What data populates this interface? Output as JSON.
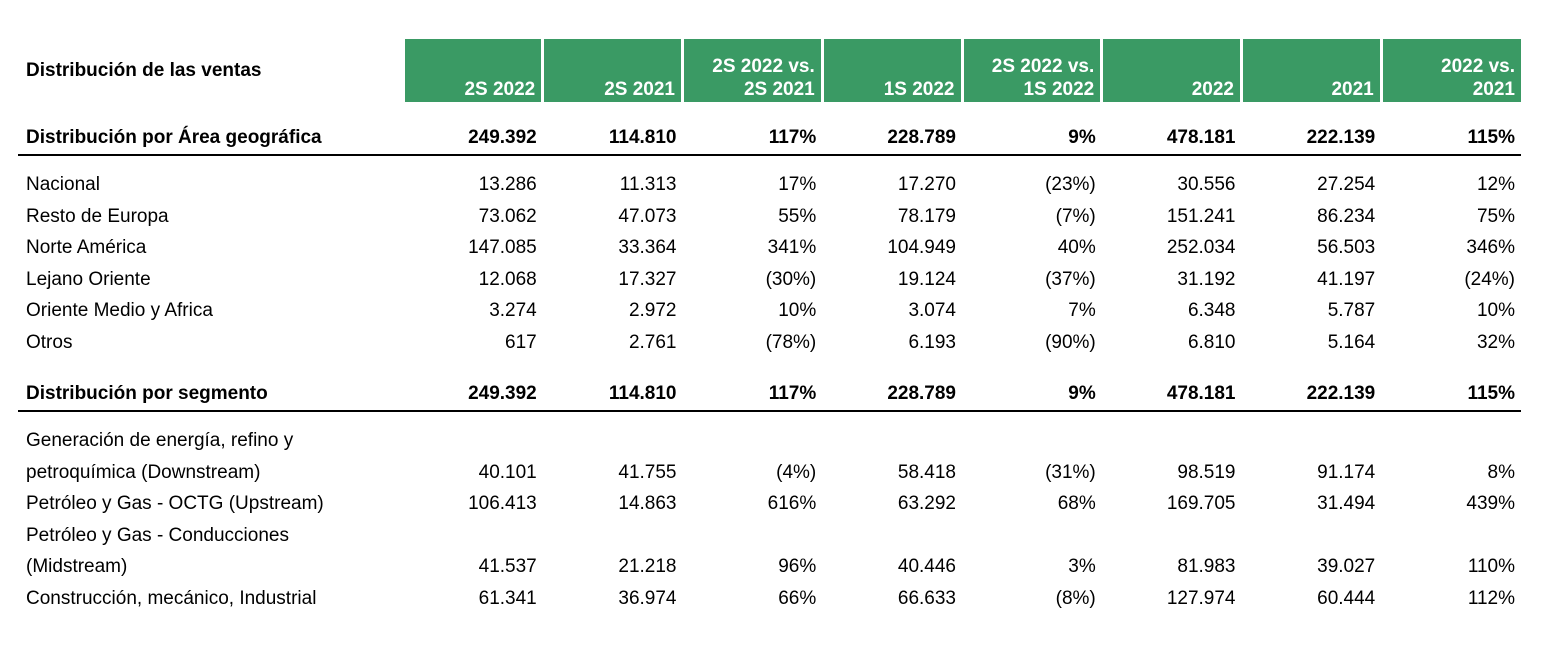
{
  "title": "Distribución de las ventas",
  "columns": [
    "2S 2022",
    "2S 2021",
    "2S 2022 vs. 2S 2021",
    "1S 2022",
    "2S 2022 vs. 1S 2022",
    "2022",
    "2021",
    "2022 vs. 2021"
  ],
  "column_lines": [
    [
      "2S 2022",
      ""
    ],
    [
      "2S 2021",
      ""
    ],
    [
      "2S 2022 vs.",
      "2S 2021"
    ],
    [
      "1S 2022",
      ""
    ],
    [
      "2S 2022 vs.",
      "1S 2022"
    ],
    [
      "2022",
      ""
    ],
    [
      "2021",
      ""
    ],
    [
      "2022 vs.",
      "2021"
    ]
  ],
  "sections": [
    {
      "title": "Distribución por Área geográfica",
      "totals": [
        "249.392",
        "114.810",
        "117%",
        "228.789",
        "9%",
        "478.181",
        "222.139",
        "115%"
      ],
      "rows": [
        {
          "label": "Nacional",
          "values": [
            "13.286",
            "11.313",
            "17%",
            "17.270",
            "(23%)",
            "30.556",
            "27.254",
            "12%"
          ]
        },
        {
          "label": "Resto de Europa",
          "values": [
            "73.062",
            "47.073",
            "55%",
            "78.179",
            "(7%)",
            "151.241",
            "86.234",
            "75%"
          ]
        },
        {
          "label": "Norte América",
          "values": [
            "147.085",
            "33.364",
            "341%",
            "104.949",
            "40%",
            "252.034",
            "56.503",
            "346%"
          ]
        },
        {
          "label": "Lejano Oriente",
          "values": [
            "12.068",
            "17.327",
            "(30%)",
            "19.124",
            "(37%)",
            "31.192",
            "41.197",
            "(24%)"
          ]
        },
        {
          "label": "Oriente Medio y Africa",
          "values": [
            "3.274",
            "2.972",
            "10%",
            "3.074",
            "7%",
            "6.348",
            "5.787",
            "10%"
          ]
        },
        {
          "label": "Otros",
          "values": [
            "617",
            "2.761",
            "(78%)",
            "6.193",
            "(90%)",
            "6.810",
            "5.164",
            "32%"
          ]
        }
      ]
    },
    {
      "title": "Distribución por segmento",
      "totals": [
        "249.392",
        "114.810",
        "117%",
        "228.789",
        "9%",
        "478.181",
        "222.139",
        "115%"
      ],
      "rows": [
        {
          "label_pre": "Generación de energía, refino y",
          "label": "petroquímica (Downstream)",
          "values": [
            "40.101",
            "41.755",
            "(4%)",
            "58.418",
            "(31%)",
            "98.519",
            "91.174",
            "8%"
          ]
        },
        {
          "label": "Petróleo y Gas - OCTG (Upstream)",
          "values": [
            "106.413",
            "14.863",
            "616%",
            "63.292",
            "68%",
            "169.705",
            "31.494",
            "439%"
          ]
        },
        {
          "label_pre": "Petróleo y Gas - Conducciones",
          "label": "(Midstream)",
          "values": [
            "41.537",
            "21.218",
            "96%",
            "40.446",
            "3%",
            "81.983",
            "39.027",
            "110%"
          ]
        },
        {
          "label": "Construcción, mecánico, Industrial",
          "values": [
            "61.341",
            "36.974",
            "66%",
            "66.633",
            "(8%)",
            "127.974",
            "60.444",
            "112%"
          ]
        }
      ]
    }
  ],
  "colors": {
    "header_bg": "#3a9a64",
    "header_text": "#ffffff",
    "rule": "#000000"
  }
}
